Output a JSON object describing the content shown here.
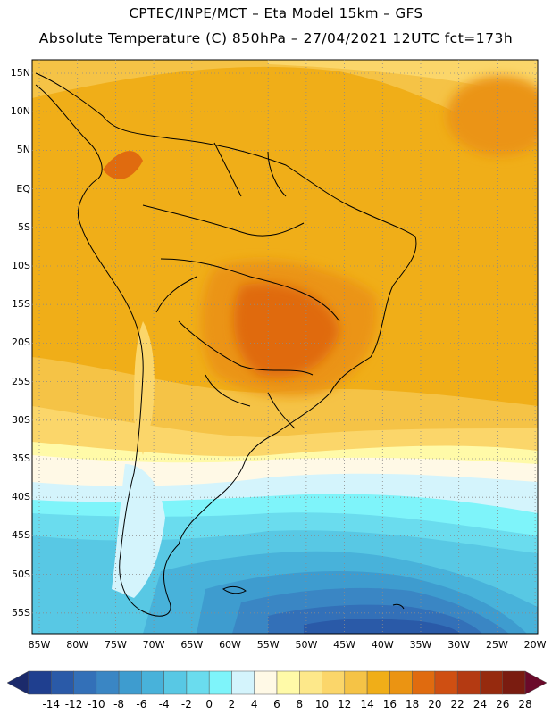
{
  "header": {
    "line1": "CPTEC/INPE/MCT –   Eta Model 15km – GFS",
    "line2": "Absolute Temperature (C) 850hPa – 27/04/2021 12UTC fct=173h"
  },
  "map": {
    "lat_labels": [
      "15N",
      "10N",
      "5N",
      "EQ",
      "5S",
      "10S",
      "15S",
      "20S",
      "25S",
      "30S",
      "35S",
      "40S",
      "45S",
      "50S",
      "55S"
    ],
    "lon_labels": [
      "85W",
      "80W",
      "75W",
      "70W",
      "65W",
      "60W",
      "55W",
      "50W",
      "45W",
      "40W",
      "35W",
      "30W",
      "25W",
      "20W"
    ]
  },
  "colorbar": {
    "labels": [
      "-14",
      "-12",
      "-10",
      "-8",
      "-6",
      "-4",
      "-2",
      "0",
      "2",
      "4",
      "6",
      "8",
      "10",
      "12",
      "14",
      "16",
      "18",
      "20",
      "22",
      "24",
      "26",
      "28"
    ],
    "colors": [
      "#1f3f8f",
      "#2a5aa8",
      "#3370b8",
      "#3a86c4",
      "#3e9ccf",
      "#48b2da",
      "#58c8e4",
      "#6adcee",
      "#7ef4fa",
      "#d4f4fc",
      "#fff9e6",
      "#fffaa8",
      "#fde88a",
      "#fbd66a",
      "#f5c346",
      "#f0ae18",
      "#eb9412",
      "#e06b0f",
      "#cf4f12",
      "#b43a12",
      "#962a0e",
      "#7a1c10"
    ],
    "low_arrow_color": "#1b2a6b",
    "high_arrow_color": "#6a0a2a"
  }
}
